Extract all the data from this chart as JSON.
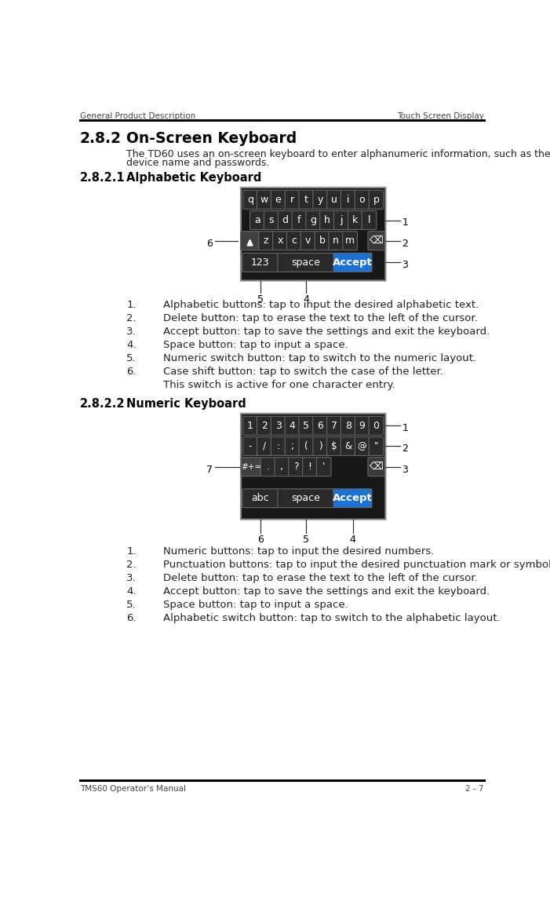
{
  "page_header_left": "General Product Description",
  "page_header_right": "Touch Screen Display",
  "page_footer_left": "TMS60 Operator’s Manual",
  "page_footer_right": "2 - 7",
  "section_num": "2.8.2",
  "section_text": "On-Screen Keyboard",
  "body1": "The TD60 uses an on-screen keyboard to enter alphanumeric information, such as the",
  "body2": "device name and passwords.",
  "sub1_num": "2.8.2.1",
  "sub1_text": "Alphabetic Keyboard",
  "sub2_num": "2.8.2.2",
  "sub2_text": "Numeric Keyboard",
  "alpha_list": [
    "Alphabetic buttons: tap to input the desired alphabetic text.",
    "Delete button: tap to erase the text to the left of the cursor.",
    "Accept button: tap to save the settings and exit the keyboard.",
    "Space button: tap to input a space.",
    "Numeric switch button: tap to switch to the numeric layout.",
    "Case shift button: tap to switch the case of the letter."
  ],
  "alpha_list_extra": "This switch is active for one character entry.",
  "numeric_list": [
    "Numeric buttons: tap to input the desired numbers.",
    "Punctuation buttons: tap to input the desired punctuation mark or symbol.",
    "Delete button: tap to erase the text to the left of the cursor.",
    "Accept button: tap to save the settings and exit the keyboard.",
    "Space button: tap to input a space.",
    "Alphabetic switch button: tap to switch to the alphabetic layout."
  ],
  "bg_color": "#ffffff",
  "line_color": "#000000",
  "header_color": "#444444",
  "body_color": "#222222",
  "kbd_bg": "#181818",
  "kbd_outer": "#555555",
  "key_bg": "#2a2a2a",
  "key_border": "#555555",
  "key_text": "#ffffff",
  "accept_bg": "#1a72d4",
  "shift_key_bg": "#404040"
}
